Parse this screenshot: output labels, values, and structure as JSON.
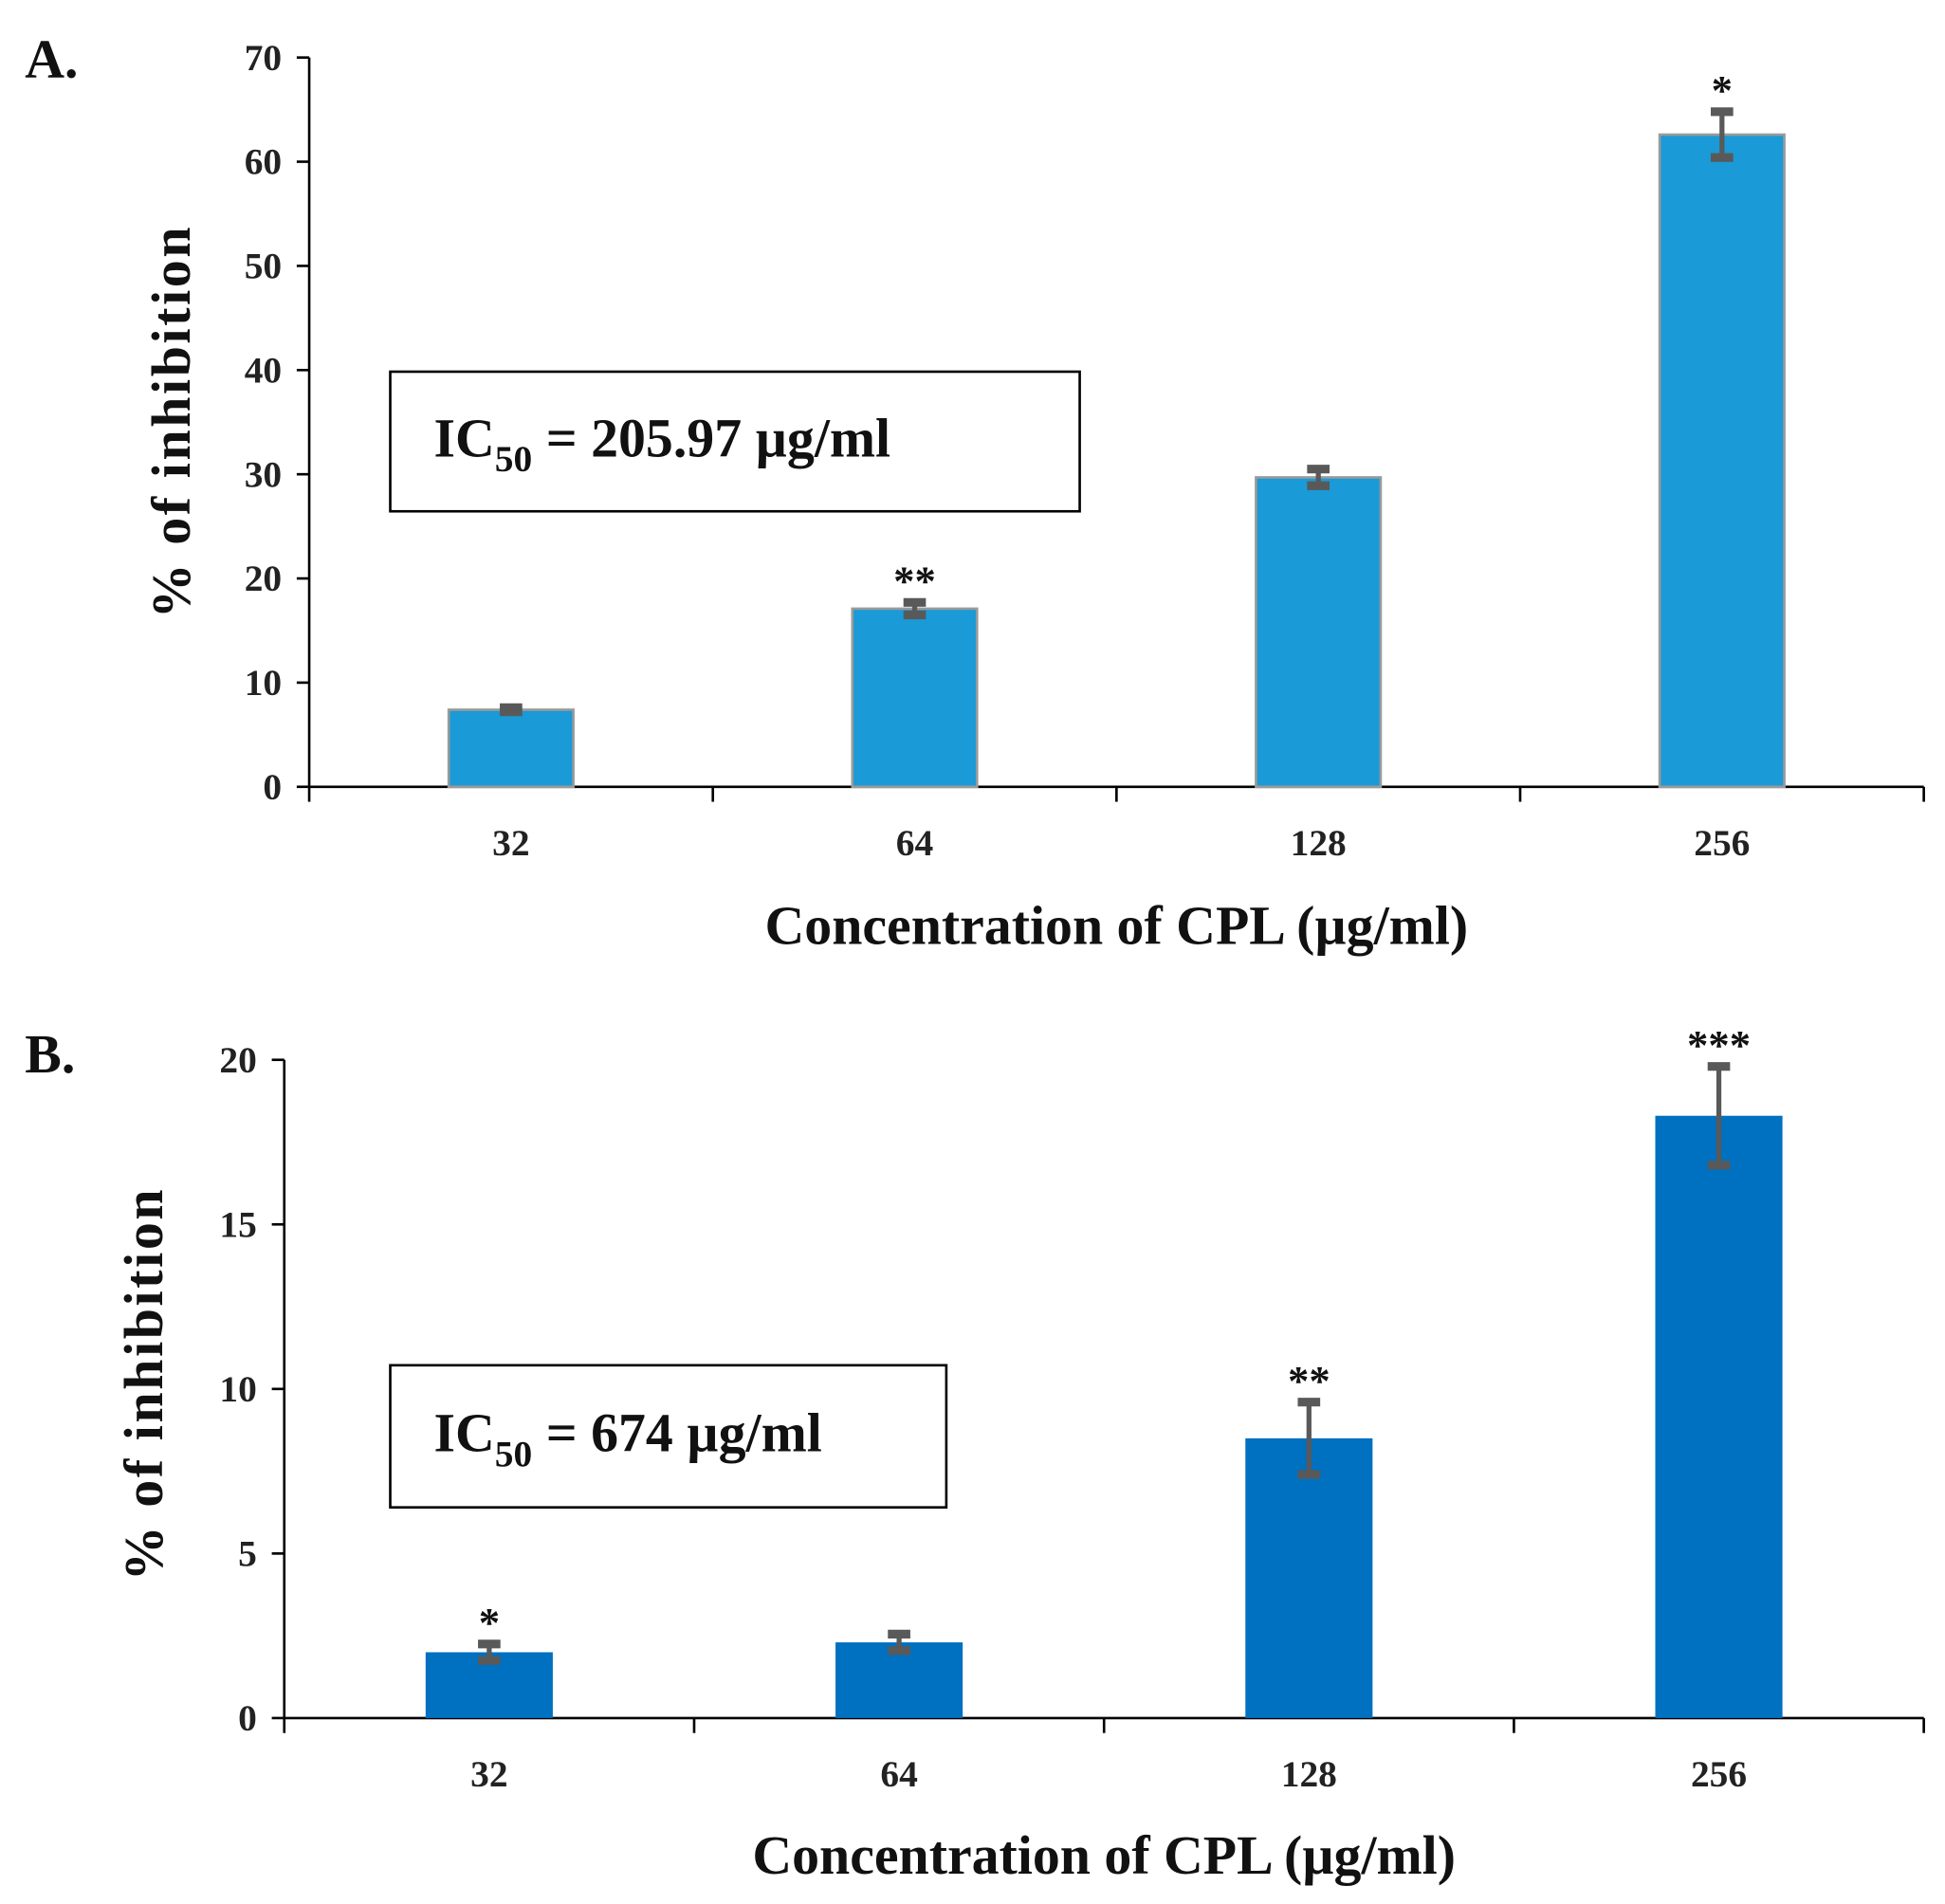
{
  "chart_data": [
    {
      "type": "bar",
      "panel_label": "A.",
      "categories": [
        "32",
        "64",
        "128",
        "256"
      ],
      "values": [
        7.4,
        17.1,
        29.7,
        62.6
      ],
      "errors": [
        0.2,
        0.6,
        0.8,
        2.2
      ],
      "significance": [
        "",
        "**",
        "",
        "*"
      ],
      "xlabel": "Concentration of CPL (µg/ml)",
      "ylabel": "% of inhibition",
      "ylim": [
        0,
        70
      ],
      "yticks": [
        0,
        10,
        20,
        30,
        40,
        50,
        60,
        70
      ],
      "annotation": {
        "prefix": "IC",
        "sub": "50",
        "text": " = 205.97 µg/ml"
      },
      "bar_color": "#1a9ad6",
      "grid": false
    },
    {
      "type": "bar",
      "panel_label": "B.",
      "categories": [
        "32",
        "64",
        "128",
        "256"
      ],
      "values": [
        2.0,
        2.3,
        8.5,
        18.3
      ],
      "errors": [
        0.25,
        0.25,
        1.1,
        1.5
      ],
      "significance": [
        "*",
        "",
        "**",
        "***"
      ],
      "xlabel": "Concentration of CPL (µg/ml)",
      "ylabel": "% of inhibition",
      "ylim": [
        0,
        20
      ],
      "yticks": [
        0,
        5,
        10,
        15,
        20
      ],
      "annotation": {
        "prefix": "IC",
        "sub": "50",
        "text": " = 674 µg/ml"
      },
      "bar_color": "#0070c0",
      "grid": false
    }
  ]
}
